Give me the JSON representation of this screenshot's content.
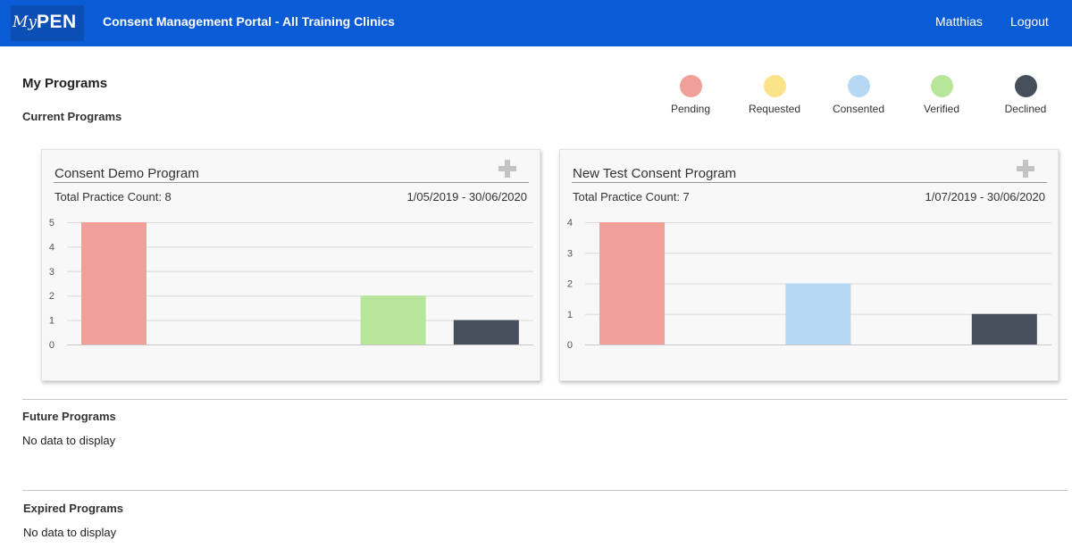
{
  "header": {
    "logo_my": "My",
    "logo_pen": "PEN",
    "title": "Consent Management Portal - All Training Clinics",
    "user": "Matthias",
    "logout": "Logout"
  },
  "page": {
    "title": "My Programs",
    "current_label": "Current Programs",
    "future_label": "Future Programs",
    "future_empty": "No data to display",
    "expired_label": "Expired Programs",
    "expired_empty": "No data to display"
  },
  "legend": [
    {
      "label": "Pending",
      "color": "#f0a098"
    },
    {
      "label": "Requested",
      "color": "#fbe38a"
    },
    {
      "label": "Consented",
      "color": "#b6d8f2"
    },
    {
      "label": "Verified",
      "color": "#b7e59a"
    },
    {
      "label": "Declined",
      "color": "#474f5c"
    }
  ],
  "programs": [
    {
      "title": "Consent Demo Program",
      "practice_count": "Total Practice Count: 8",
      "date_range": "1/05/2019 - 30/06/2020"
    },
    {
      "title": "New Test Consent Program",
      "practice_count": "Total Practice Count: 7",
      "date_range": "1/07/2019 - 30/06/2020"
    }
  ],
  "chart_data": [
    {
      "type": "bar",
      "categories": [
        "Pending",
        "Requested",
        "Consented",
        "Verified",
        "Declined"
      ],
      "values": [
        5,
        0,
        0,
        2,
        1
      ],
      "colors": [
        "#f0a098",
        "#fbe38a",
        "#b6d8f2",
        "#b7e59a",
        "#474f5c"
      ],
      "ylim": [
        0,
        5
      ],
      "yticks": [
        "0",
        "1",
        "2",
        "3",
        "4",
        "5"
      ],
      "grid": true
    },
    {
      "type": "bar",
      "categories": [
        "Pending",
        "Requested",
        "Consented",
        "Verified",
        "Declined"
      ],
      "values": [
        4,
        0,
        2,
        0,
        1
      ],
      "colors": [
        "#f0a098",
        "#fbe38a",
        "#b6d8f2",
        "#b7e59a",
        "#474f5c"
      ],
      "ylim": [
        0,
        4
      ],
      "yticks": [
        "0",
        "1",
        "2",
        "3",
        "4"
      ],
      "grid": true
    }
  ]
}
